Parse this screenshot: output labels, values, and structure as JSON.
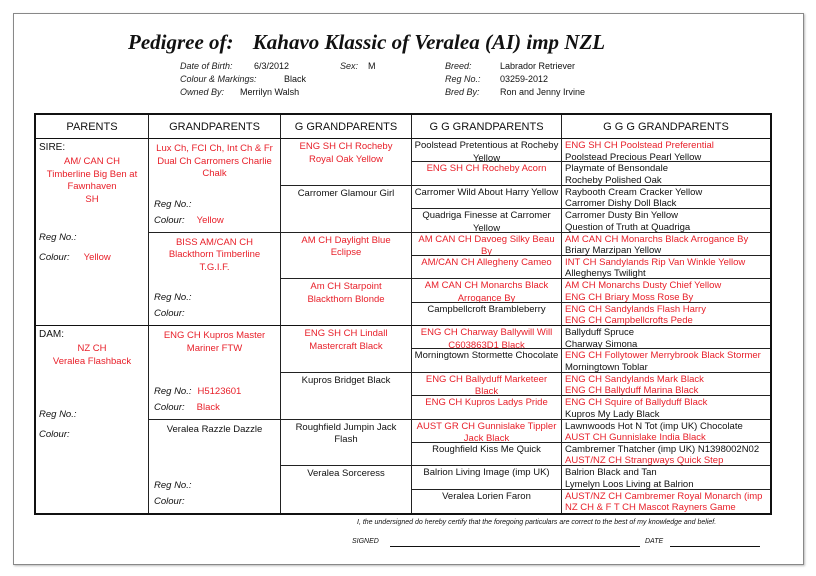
{
  "header": {
    "title_label": "Pedigree of:",
    "dog_name": "Kahavo Klassic of Veralea (AI) imp NZL",
    "dob_label": "Date of Birth:",
    "dob": "6/3/2012",
    "sex_label": "Sex:",
    "sex": "M",
    "colour_label": "Colour & Markings:",
    "colour": "Black",
    "owner_label": "Owned By:",
    "owner": "Merrilyn Walsh",
    "breed_label": "Breed:",
    "breed": "Labrador Retriever",
    "reg_label": "Reg No.:",
    "reg": "03259-2012",
    "breeder_label": "Bred By:",
    "breeder": "Ron and Jenny Irvine"
  },
  "columns": [
    "PARENTS",
    "GRANDPARENTS",
    "G GRANDPARENTS",
    "G G GRANDPARENTS",
    "G G G GRANDPARENTS"
  ],
  "labels": {
    "reg": "Reg No.:",
    "colour": "Colour:"
  },
  "colors": {
    "champion": "#e8202a",
    "normal": "#111111"
  },
  "parents": [
    {
      "role": "SIRE:",
      "name": "AM/ CAN CH\nTimberline Big Ben at Fawnhaven\nSH",
      "red": true,
      "reg": "",
      "colour": "Yellow"
    },
    {
      "role": "DAM:",
      "name": "NZ CH\nVeralea Flashback",
      "red": true,
      "reg": "",
      "colour": ""
    }
  ],
  "grandparents": [
    {
      "name": "Lux Ch, FCI Ch, Int Ch & Fr Dual Ch Carromers Charlie Chalk",
      "red": true,
      "reg": "",
      "colour": "Yellow"
    },
    {
      "name": "BISS AM/CAN CH Blackthorn Timberline T.G.I.F.",
      "red": true,
      "reg": "",
      "colour": ""
    },
    {
      "name": "ENG CH Kupros Master Mariner FTW",
      "red": true,
      "reg": "H5123601",
      "colour": "Black"
    },
    {
      "name": "Veralea Razzle Dazzle",
      "red": false,
      "reg": "",
      "colour": ""
    }
  ],
  "g_grandparents": [
    {
      "name": "ENG SH CH Rocheby Royal Oak Yellow",
      "red": true
    },
    {
      "name": "Carromer Glamour Girl",
      "red": false
    },
    {
      "name": "AM CH Daylight Blue Eclipse",
      "red": true
    },
    {
      "name": "Am CH Starpoint Blackthorn Blonde",
      "red": true
    },
    {
      "name": "ENG SH CH Lindall Mastercraft Black",
      "red": true
    },
    {
      "name": "Kupros Bridget Black",
      "red": false
    },
    {
      "name": "Roughfield Jumpin Jack Flash",
      "red": false
    },
    {
      "name": "Veralea Sorceress",
      "red": false
    }
  ],
  "gg_grandparents": [
    {
      "name": "Poolstead Pretentious at Rocheby Yellow",
      "red": false
    },
    {
      "name": "ENG SH CH Rocheby Acorn",
      "red": true
    },
    {
      "name": "Carromer Wild About Harry Yellow",
      "red": false
    },
    {
      "name": "Quadriga Finesse at Carromer Yellow",
      "red": false
    },
    {
      "name": "AM CAN CH Davoeg Silky Beau By",
      "red": true
    },
    {
      "name": "AM/CAN CH Allegheny Cameo",
      "red": true
    },
    {
      "name": "AM CAN CH Monarchs Black Arrogance By",
      "red": true
    },
    {
      "name": "Campbellcroft Brambleberry",
      "red": false
    },
    {
      "name": "ENG CH Charway Ballywill Will C603863D1 Black",
      "red": true
    },
    {
      "name": "Morningtown Stormette Chocolate",
      "red": false
    },
    {
      "name": "ENG CH Ballyduff Marketeer Black",
      "red": true
    },
    {
      "name": "ENG CH Kupros Ladys Pride",
      "red": true
    },
    {
      "name": "AUST GR CH Gunnislake Tippler Jack Black",
      "red": true
    },
    {
      "name": "Roughfield Kiss Me Quick",
      "red": false
    },
    {
      "name": "Balrion Living Image (imp UK)",
      "red": false
    },
    {
      "name": "Veralea Lorien Faron",
      "red": false
    }
  ],
  "ggg_grandparents": [
    [
      {
        "name": "ENG SH CH Poolstead Preferential",
        "red": true
      },
      {
        "name": "Poolstead Precious Pearl Yellow",
        "red": false
      }
    ],
    [
      {
        "name": "Playmate of Bensondale",
        "red": false
      },
      {
        "name": "Rocheby Polished Oak",
        "red": false
      }
    ],
    [
      {
        "name": "Raybooth Cream Cracker Yellow",
        "red": false
      },
      {
        "name": "Carromer Dishy Doll Black",
        "red": false
      }
    ],
    [
      {
        "name": "Carromer Dusty Bin Yellow",
        "red": false
      },
      {
        "name": "Question of Truth at Quadriga",
        "red": false
      }
    ],
    [
      {
        "name": "AM CAN CH Monarchs Black Arrogance By",
        "red": true
      },
      {
        "name": "Briary Marzipan Yellow",
        "red": false
      }
    ],
    [
      {
        "name": "INT CH Sandylands Rip Van Winkle Yellow",
        "red": true
      },
      {
        "name": "Alleghenys Twilight",
        "red": false
      }
    ],
    [
      {
        "name": "AM CH Monarchs Dusty Chief Yellow",
        "red": true
      },
      {
        "name": "ENG CH Briary Moss Rose By",
        "red": true
      }
    ],
    [
      {
        "name": "ENG CH Sandylands Flash Harry",
        "red": true
      },
      {
        "name": "ENG CH Campbellcrofts Pede",
        "red": true
      }
    ],
    [
      {
        "name": "Ballyduff Spruce",
        "red": false
      },
      {
        "name": "Charway Simona",
        "red": false
      }
    ],
    [
      {
        "name": "ENG CH Follytower Merrybrook Black Stormer",
        "red": true
      },
      {
        "name": "Morningtown Toblar",
        "red": false
      }
    ],
    [
      {
        "name": "ENG CH Sandylands Mark Black",
        "red": true
      },
      {
        "name": "ENG CH Ballyduff Marina Black",
        "red": true
      }
    ],
    [
      {
        "name": "ENG CH Squire of Ballyduff Black",
        "red": true
      },
      {
        "name": "Kupros My Lady Black",
        "red": false
      }
    ],
    [
      {
        "name": "Lawnwoods Hot N Tot (imp UK) Chocolate",
        "red": false
      },
      {
        "name": "AUST CH Gunnislake India Black",
        "red": true
      }
    ],
    [
      {
        "name": "Cambremer Thatcher (imp UK) N1398002N02",
        "red": false
      },
      {
        "name": "AUST/NZ CH Strangways Quick Step",
        "red": true
      }
    ],
    [
      {
        "name": "Balrion Black and Tan",
        "red": false
      },
      {
        "name": "Lymelyn Loos Living at Balrion",
        "red": false
      }
    ],
    [
      {
        "name": "AUST/NZ CH Cambremer Royal Monarch (imp",
        "red": true
      },
      {
        "name": "NZ CH & F T CH Mascot Rayners Game",
        "red": true
      }
    ]
  ],
  "footer": {
    "certification": "I, the undersigned do hereby certify that the foregoing particulars are correct to the best of my knowledge and belief.",
    "signed_label": "SIGNED",
    "date_label": "DATE"
  }
}
